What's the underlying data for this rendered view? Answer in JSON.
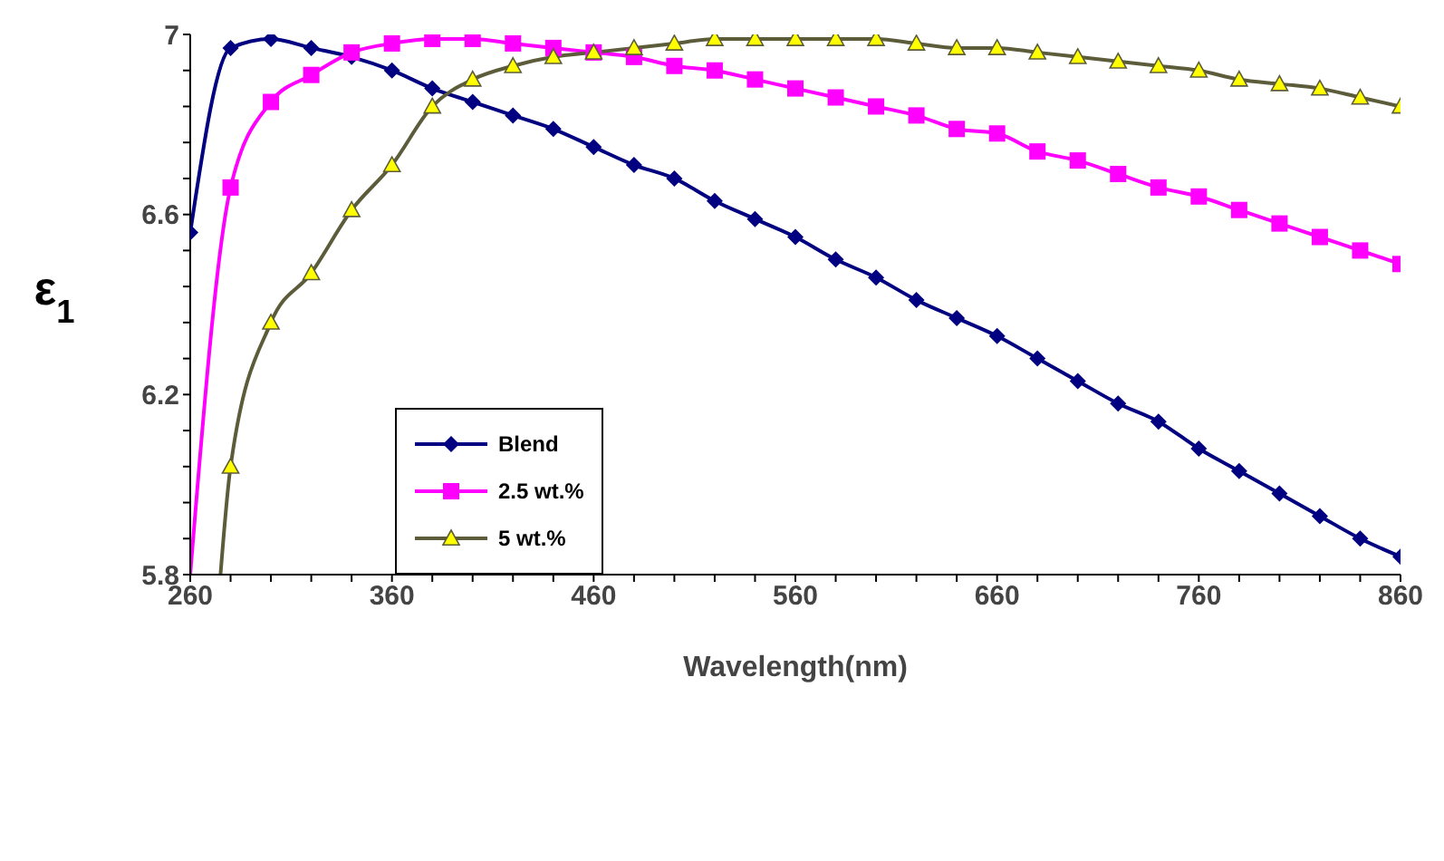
{
  "chart_data": {
    "type": "line",
    "xlabel": "Wavelength(nm)",
    "ylabel": "ε$_{1}$",
    "xlim": [
      260,
      860
    ],
    "ylim": [
      5.8,
      7
    ],
    "xticks": [
      260,
      {
        "value": 280,
        "label": null
      },
      {
        "value": 300,
        "label": null
      },
      {
        "value": 320,
        "label": null
      },
      {
        "value": 340,
        "label": null
      },
      360,
      {
        "value": 380,
        "label": null
      },
      {
        "value": 400,
        "label": null
      },
      {
        "value": 420,
        "label": null
      },
      {
        "value": 440,
        "label": null
      },
      460,
      {
        "value": 480,
        "label": null
      },
      {
        "value": 500,
        "label": null
      },
      {
        "value": 520,
        "label": null
      },
      {
        "value": 540,
        "label": null
      },
      560,
      {
        "value": 580,
        "label": null
      },
      {
        "value": 600,
        "label": null
      },
      {
        "value": 620,
        "label": null
      },
      {
        "value": 640,
        "label": null
      },
      660,
      {
        "value": 680,
        "label": null
      },
      {
        "value": 700,
        "label": null
      },
      {
        "value": 720,
        "label": null
      },
      {
        "value": 740,
        "label": null
      },
      760,
      {
        "value": 780,
        "label": null
      },
      {
        "value": 800,
        "label": null
      },
      {
        "value": 820,
        "label": null
      },
      {
        "value": 840,
        "label": null
      },
      860
    ],
    "yticks": [
      5.8,
      {
        "value": 5.88,
        "label": null
      },
      {
        "value": 5.96,
        "label": null
      },
      {
        "value": 6.04,
        "label": null
      },
      {
        "value": 6.12,
        "label": null
      },
      6.2,
      {
        "value": 6.28,
        "label": null
      },
      {
        "value": 6.36,
        "label": null
      },
      {
        "value": 6.44,
        "label": null
      },
      {
        "value": 6.52,
        "label": null
      },
      6.6,
      {
        "value": 6.68,
        "label": null
      },
      {
        "value": 6.76,
        "label": null
      },
      {
        "value": 6.84,
        "label": null
      },
      {
        "value": 6.92,
        "label": null
      },
      7
    ],
    "legend": "left",
    "series": [
      {
        "name": "Blend",
        "color": "#000080",
        "marker": "diamond",
        "x": [
          260,
          280,
          300,
          320,
          340,
          360,
          380,
          400,
          420,
          440,
          460,
          480,
          500,
          520,
          540,
          560,
          580,
          600,
          620,
          640,
          660,
          680,
          700,
          720,
          740,
          760,
          780,
          800,
          820,
          840,
          860
        ],
        "values": [
          6.56,
          6.97,
          6.99,
          6.97,
          6.95,
          6.92,
          6.88,
          6.85,
          6.82,
          6.79,
          6.75,
          6.71,
          6.68,
          6.63,
          6.59,
          6.55,
          6.5,
          6.46,
          6.41,
          6.37,
          6.33,
          6.28,
          6.23,
          6.18,
          6.14,
          6.08,
          6.03,
          5.98,
          5.93,
          5.88,
          5.84
        ]
      },
      {
        "name": "2.5 wt.%",
        "color": "#ff00ff",
        "marker": "square",
        "x": [
          260,
          280,
          300,
          320,
          340,
          360,
          380,
          400,
          420,
          440,
          460,
          480,
          500,
          520,
          540,
          560,
          580,
          600,
          620,
          640,
          660,
          680,
          700,
          720,
          740,
          760,
          780,
          800,
          820,
          840,
          860
        ],
        "values": [
          5.8,
          6.66,
          6.85,
          6.91,
          6.96,
          6.98,
          6.99,
          6.99,
          6.98,
          6.97,
          6.96,
          6.95,
          6.93,
          6.92,
          6.9,
          6.88,
          6.86,
          6.84,
          6.82,
          6.79,
          6.78,
          6.74,
          6.72,
          6.69,
          6.66,
          6.64,
          6.61,
          6.58,
          6.55,
          6.52,
          6.49
        ]
      },
      {
        "name": "5 wt.%",
        "color": "#5c5c3a",
        "marker": "triangle",
        "x": [
          275,
          280,
          300,
          320,
          340,
          360,
          380,
          400,
          420,
          440,
          460,
          480,
          500,
          520,
          540,
          560,
          580,
          600,
          620,
          640,
          660,
          680,
          700,
          720,
          740,
          760,
          780,
          800,
          820,
          840,
          860
        ],
        "values": [
          5.8,
          6.04,
          6.36,
          6.47,
          6.61,
          6.71,
          6.84,
          6.9,
          6.93,
          6.95,
          6.96,
          6.97,
          6.98,
          6.99,
          6.99,
          6.99,
          6.99,
          6.99,
          6.98,
          6.97,
          6.97,
          6.96,
          6.95,
          6.94,
          6.93,
          6.92,
          6.9,
          6.89,
          6.88,
          6.86,
          6.84
        ]
      }
    ]
  }
}
